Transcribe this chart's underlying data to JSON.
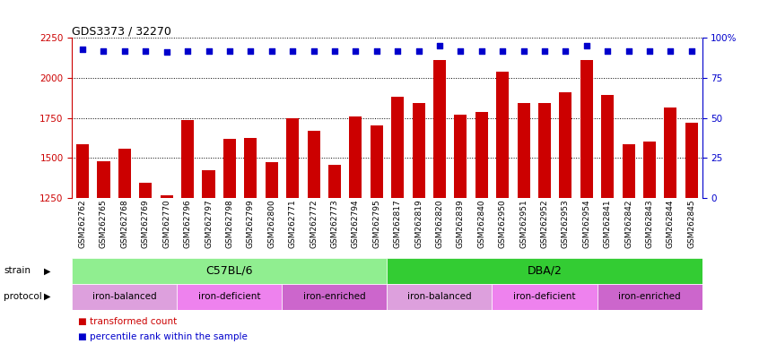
{
  "title": "GDS3373 / 32270",
  "samples": [
    "GSM262762",
    "GSM262765",
    "GSM262768",
    "GSM262769",
    "GSM262770",
    "GSM262796",
    "GSM262797",
    "GSM262798",
    "GSM262799",
    "GSM262800",
    "GSM262771",
    "GSM262772",
    "GSM262773",
    "GSM262794",
    "GSM262795",
    "GSM262817",
    "GSM262819",
    "GSM262820",
    "GSM262839",
    "GSM262840",
    "GSM262950",
    "GSM262951",
    "GSM262952",
    "GSM262953",
    "GSM262954",
    "GSM262841",
    "GSM262842",
    "GSM262843",
    "GSM262844",
    "GSM262845"
  ],
  "bar_values": [
    1585,
    1480,
    1555,
    1345,
    1265,
    1735,
    1425,
    1620,
    1625,
    1475,
    1750,
    1670,
    1455,
    1760,
    1700,
    1880,
    1840,
    2110,
    1770,
    1785,
    2040,
    1845,
    1845,
    1910,
    2110,
    1895,
    1585,
    1600,
    1815,
    1720
  ],
  "percentile_values": [
    93,
    92,
    92,
    92,
    91,
    92,
    92,
    92,
    92,
    92,
    92,
    92,
    92,
    92,
    92,
    92,
    92,
    95,
    92,
    92,
    92,
    92,
    92,
    92,
    95,
    92,
    92,
    92,
    92,
    92
  ],
  "bar_color": "#CC0000",
  "dot_color": "#0000CC",
  "ylim_left": [
    1250,
    2250
  ],
  "ylim_right": [
    0,
    100
  ],
  "yticks_left": [
    1250,
    1500,
    1750,
    2000,
    2250
  ],
  "yticks_right": [
    0,
    25,
    50,
    75,
    100
  ],
  "strain_groups": [
    {
      "label": "C57BL/6",
      "start": 0,
      "end": 15,
      "color": "#90EE90"
    },
    {
      "label": "DBA/2",
      "start": 15,
      "end": 30,
      "color": "#33CC33"
    }
  ],
  "protocol_groups": [
    {
      "label": "iron-balanced",
      "start": 0,
      "end": 5,
      "color": "#DDA0DD"
    },
    {
      "label": "iron-deficient",
      "start": 5,
      "end": 10,
      "color": "#EE82EE"
    },
    {
      "label": "iron-enriched",
      "start": 10,
      "end": 15,
      "color": "#CC66CC"
    },
    {
      "label": "iron-balanced",
      "start": 15,
      "end": 20,
      "color": "#DDA0DD"
    },
    {
      "label": "iron-deficient",
      "start": 20,
      "end": 25,
      "color": "#EE82EE"
    },
    {
      "label": "iron-enriched",
      "start": 25,
      "end": 30,
      "color": "#CC66CC"
    }
  ],
  "legend_items": [
    {
      "label": "transformed count",
      "color": "#CC0000"
    },
    {
      "label": "percentile rank within the sample",
      "color": "#0000CC"
    }
  ],
  "grid_color": "black",
  "grid_linestyle": "dotted",
  "grid_linewidth": 0.7
}
